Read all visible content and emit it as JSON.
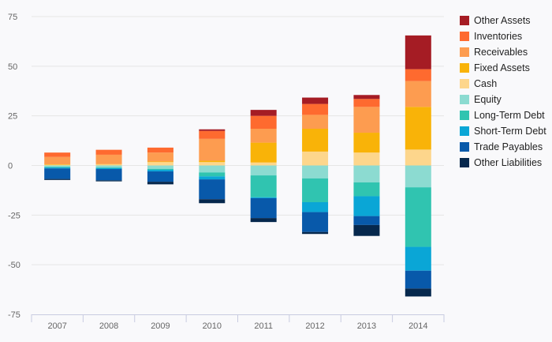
{
  "chart_data": {
    "type": "bar",
    "stacked": true,
    "categories": [
      "2007",
      "2008",
      "2009",
      "2010",
      "2011",
      "2012",
      "2013",
      "2014"
    ],
    "ylim": [
      -75,
      75
    ],
    "yticks": [
      75,
      50,
      25,
      0,
      -25,
      -50,
      -75
    ],
    "grid": true,
    "legend_position": "right",
    "assets": [
      {
        "name": "Other Assets",
        "color": "#a51c24",
        "values": [
          0,
          0,
          0,
          0.8,
          3,
          3.2,
          2,
          17
        ]
      },
      {
        "name": "Inventories",
        "color": "#fe6a2f",
        "values": [
          2.2,
          2.5,
          2.5,
          4,
          6.5,
          5.5,
          4,
          6
        ]
      },
      {
        "name": "Receivables",
        "color": "#fd9c50",
        "values": [
          3.7,
          4.7,
          4.5,
          11,
          7,
          7,
          13,
          13
        ]
      },
      {
        "name": "Fixed Assets",
        "color": "#f9b308",
        "values": [
          0.2,
          0.2,
          0.3,
          0.7,
          10,
          11.5,
          10,
          21.5
        ]
      },
      {
        "name": "Cash",
        "color": "#fdd68c",
        "values": [
          0.4,
          0.5,
          1.7,
          1.7,
          1.5,
          7,
          6.5,
          8
        ]
      }
    ],
    "liabilities": [
      {
        "name": "Equity",
        "color": "#8cdbd1",
        "values": [
          0.8,
          1,
          1.7,
          3.5,
          5,
          6.5,
          8.5,
          11
        ]
      },
      {
        "name": "Long-Term Debt",
        "color": "#30c4b0",
        "values": [
          0.2,
          0.3,
          0.5,
          2,
          11,
          12,
          7,
          30
        ]
      },
      {
        "name": "Short-Term Debt",
        "color": "#0aa6d6",
        "values": [
          0.5,
          0.5,
          0.8,
          1.5,
          0.5,
          5,
          10,
          12
        ]
      },
      {
        "name": "Trade Payables",
        "color": "#0859aa",
        "values": [
          5.3,
          5.7,
          5.2,
          10,
          10,
          10,
          4.5,
          9
        ]
      },
      {
        "name": "Other Liabilities",
        "color": "#06284d",
        "values": [
          0.5,
          0.5,
          1.3,
          2,
          2,
          1,
          5.5,
          4
        ]
      }
    ],
    "legend": [
      "Other Assets",
      "Inventories",
      "Receivables",
      "Fixed Assets",
      "Cash",
      "Equity",
      "Long-Term Debt",
      "Short-Term Debt",
      "Trade Payables",
      "Other Liabilities"
    ]
  }
}
